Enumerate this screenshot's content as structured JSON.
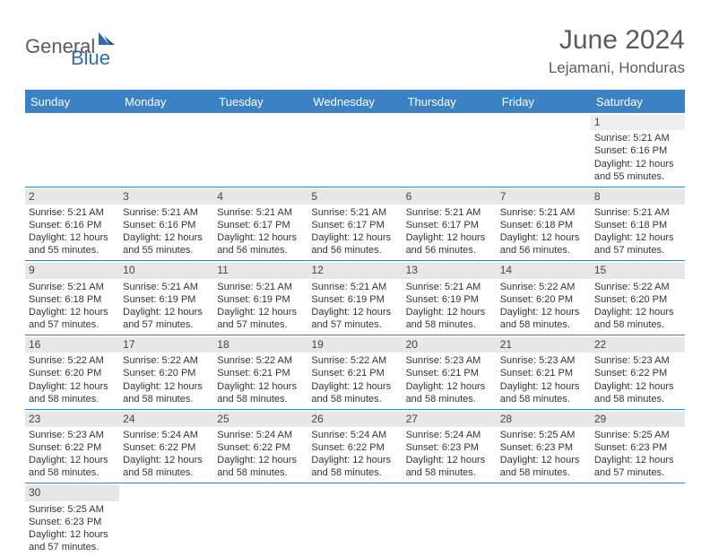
{
  "brand": {
    "part1": "General",
    "part2": "Blue"
  },
  "title": "June 2024",
  "location": "Lejamani, Honduras",
  "colors": {
    "header_bg": "#3b82c4",
    "header_text": "#ffffff",
    "daynum_bg": "#e7e7e7",
    "border": "#3b82c4"
  },
  "weekdays": [
    "Sunday",
    "Monday",
    "Tuesday",
    "Wednesday",
    "Thursday",
    "Friday",
    "Saturday"
  ],
  "weeks": [
    [
      {
        "day": "",
        "lines": []
      },
      {
        "day": "",
        "lines": []
      },
      {
        "day": "",
        "lines": []
      },
      {
        "day": "",
        "lines": []
      },
      {
        "day": "",
        "lines": []
      },
      {
        "day": "",
        "lines": []
      },
      {
        "day": "1",
        "lines": [
          "Sunrise: 5:21 AM",
          "Sunset: 6:16 PM",
          "Daylight: 12 hours",
          "and 55 minutes."
        ]
      }
    ],
    [
      {
        "day": "2",
        "lines": [
          "Sunrise: 5:21 AM",
          "Sunset: 6:16 PM",
          "Daylight: 12 hours",
          "and 55 minutes."
        ]
      },
      {
        "day": "3",
        "lines": [
          "Sunrise: 5:21 AM",
          "Sunset: 6:16 PM",
          "Daylight: 12 hours",
          "and 55 minutes."
        ]
      },
      {
        "day": "4",
        "lines": [
          "Sunrise: 5:21 AM",
          "Sunset: 6:17 PM",
          "Daylight: 12 hours",
          "and 56 minutes."
        ]
      },
      {
        "day": "5",
        "lines": [
          "Sunrise: 5:21 AM",
          "Sunset: 6:17 PM",
          "Daylight: 12 hours",
          "and 56 minutes."
        ]
      },
      {
        "day": "6",
        "lines": [
          "Sunrise: 5:21 AM",
          "Sunset: 6:17 PM",
          "Daylight: 12 hours",
          "and 56 minutes."
        ]
      },
      {
        "day": "7",
        "lines": [
          "Sunrise: 5:21 AM",
          "Sunset: 6:18 PM",
          "Daylight: 12 hours",
          "and 56 minutes."
        ]
      },
      {
        "day": "8",
        "lines": [
          "Sunrise: 5:21 AM",
          "Sunset: 6:18 PM",
          "Daylight: 12 hours",
          "and 57 minutes."
        ]
      }
    ],
    [
      {
        "day": "9",
        "lines": [
          "Sunrise: 5:21 AM",
          "Sunset: 6:18 PM",
          "Daylight: 12 hours",
          "and 57 minutes."
        ]
      },
      {
        "day": "10",
        "lines": [
          "Sunrise: 5:21 AM",
          "Sunset: 6:19 PM",
          "Daylight: 12 hours",
          "and 57 minutes."
        ]
      },
      {
        "day": "11",
        "lines": [
          "Sunrise: 5:21 AM",
          "Sunset: 6:19 PM",
          "Daylight: 12 hours",
          "and 57 minutes."
        ]
      },
      {
        "day": "12",
        "lines": [
          "Sunrise: 5:21 AM",
          "Sunset: 6:19 PM",
          "Daylight: 12 hours",
          "and 57 minutes."
        ]
      },
      {
        "day": "13",
        "lines": [
          "Sunrise: 5:21 AM",
          "Sunset: 6:19 PM",
          "Daylight: 12 hours",
          "and 58 minutes."
        ]
      },
      {
        "day": "14",
        "lines": [
          "Sunrise: 5:22 AM",
          "Sunset: 6:20 PM",
          "Daylight: 12 hours",
          "and 58 minutes."
        ]
      },
      {
        "day": "15",
        "lines": [
          "Sunrise: 5:22 AM",
          "Sunset: 6:20 PM",
          "Daylight: 12 hours",
          "and 58 minutes."
        ]
      }
    ],
    [
      {
        "day": "16",
        "lines": [
          "Sunrise: 5:22 AM",
          "Sunset: 6:20 PM",
          "Daylight: 12 hours",
          "and 58 minutes."
        ]
      },
      {
        "day": "17",
        "lines": [
          "Sunrise: 5:22 AM",
          "Sunset: 6:20 PM",
          "Daylight: 12 hours",
          "and 58 minutes."
        ]
      },
      {
        "day": "18",
        "lines": [
          "Sunrise: 5:22 AM",
          "Sunset: 6:21 PM",
          "Daylight: 12 hours",
          "and 58 minutes."
        ]
      },
      {
        "day": "19",
        "lines": [
          "Sunrise: 5:22 AM",
          "Sunset: 6:21 PM",
          "Daylight: 12 hours",
          "and 58 minutes."
        ]
      },
      {
        "day": "20",
        "lines": [
          "Sunrise: 5:23 AM",
          "Sunset: 6:21 PM",
          "Daylight: 12 hours",
          "and 58 minutes."
        ]
      },
      {
        "day": "21",
        "lines": [
          "Sunrise: 5:23 AM",
          "Sunset: 6:21 PM",
          "Daylight: 12 hours",
          "and 58 minutes."
        ]
      },
      {
        "day": "22",
        "lines": [
          "Sunrise: 5:23 AM",
          "Sunset: 6:22 PM",
          "Daylight: 12 hours",
          "and 58 minutes."
        ]
      }
    ],
    [
      {
        "day": "23",
        "lines": [
          "Sunrise: 5:23 AM",
          "Sunset: 6:22 PM",
          "Daylight: 12 hours",
          "and 58 minutes."
        ]
      },
      {
        "day": "24",
        "lines": [
          "Sunrise: 5:24 AM",
          "Sunset: 6:22 PM",
          "Daylight: 12 hours",
          "and 58 minutes."
        ]
      },
      {
        "day": "25",
        "lines": [
          "Sunrise: 5:24 AM",
          "Sunset: 6:22 PM",
          "Daylight: 12 hours",
          "and 58 minutes."
        ]
      },
      {
        "day": "26",
        "lines": [
          "Sunrise: 5:24 AM",
          "Sunset: 6:22 PM",
          "Daylight: 12 hours",
          "and 58 minutes."
        ]
      },
      {
        "day": "27",
        "lines": [
          "Sunrise: 5:24 AM",
          "Sunset: 6:23 PM",
          "Daylight: 12 hours",
          "and 58 minutes."
        ]
      },
      {
        "day": "28",
        "lines": [
          "Sunrise: 5:25 AM",
          "Sunset: 6:23 PM",
          "Daylight: 12 hours",
          "and 58 minutes."
        ]
      },
      {
        "day": "29",
        "lines": [
          "Sunrise: 5:25 AM",
          "Sunset: 6:23 PM",
          "Daylight: 12 hours",
          "and 57 minutes."
        ]
      }
    ],
    [
      {
        "day": "30",
        "lines": [
          "Sunrise: 5:25 AM",
          "Sunset: 6:23 PM",
          "Daylight: 12 hours",
          "and 57 minutes."
        ]
      },
      {
        "day": "",
        "lines": []
      },
      {
        "day": "",
        "lines": []
      },
      {
        "day": "",
        "lines": []
      },
      {
        "day": "",
        "lines": []
      },
      {
        "day": "",
        "lines": []
      },
      {
        "day": "",
        "lines": []
      }
    ]
  ]
}
